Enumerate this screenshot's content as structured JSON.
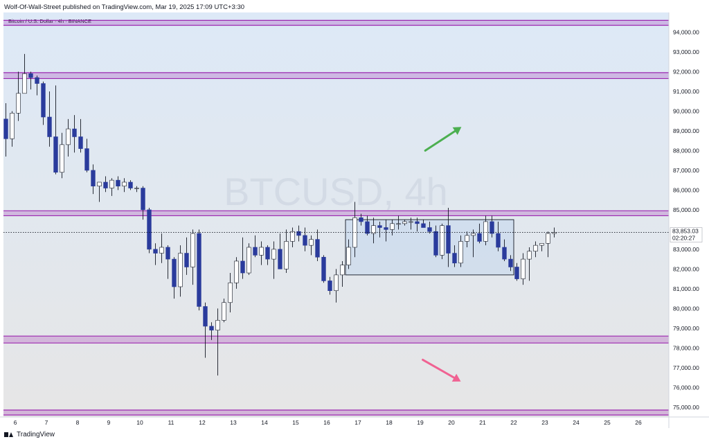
{
  "header": {
    "published_text": "Wolf-Of-Wall-Street published on TradingView.com, Mar 19, 2025 17:09 UTC+3:30"
  },
  "footer": {
    "logo_text": "TradingView"
  },
  "chart_data": {
    "type": "candlestick",
    "symbol_label": "Bitcoin / U.S. Dollar · 4h · BINANCE",
    "watermark": "BTCUSD, 4h",
    "ylim": [
      74500,
      95000
    ],
    "y_ticks": [
      "94,000.00",
      "93,000.00",
      "92,000.00",
      "91,000.00",
      "90,000.00",
      "89,000.00",
      "88,000.00",
      "87,000.00",
      "86,000.00",
      "85,000.00",
      "84,000.00",
      "83,000.00",
      "82,000.00",
      "81,000.00",
      "80,000.00",
      "79,000.00",
      "78,000.00",
      "77,000.00",
      "76,000.00",
      "75,000.00"
    ],
    "x_ticks": [
      {
        "label": "6",
        "index": 1.5
      },
      {
        "label": "7",
        "index": 6.5
      },
      {
        "label": "8",
        "index": 11.5
      },
      {
        "label": "9",
        "index": 16.5
      },
      {
        "label": "10",
        "index": 21.5
      },
      {
        "label": "11",
        "index": 26.5
      },
      {
        "label": "12",
        "index": 31.5
      },
      {
        "label": "13",
        "index": 36.5
      },
      {
        "label": "14",
        "index": 41.5
      },
      {
        "label": "15",
        "index": 46.5
      },
      {
        "label": "16",
        "index": 51.5
      },
      {
        "label": "17",
        "index": 56.5
      },
      {
        "label": "18",
        "index": 61.5
      },
      {
        "label": "19",
        "index": 66.5
      },
      {
        "label": "20",
        "index": 71.5
      },
      {
        "label": "21",
        "index": 76.5
      },
      {
        "label": "22",
        "index": 81.5
      },
      {
        "label": "23",
        "index": 86.5
      },
      {
        "label": "24",
        "index": 91.5
      },
      {
        "label": "25",
        "index": 96.5
      },
      {
        "label": "26",
        "index": 101.5
      }
    ],
    "last_price": "83,853.03",
    "countdown": "02:20:27",
    "candles": [
      [
        89600,
        90400,
        87700,
        88600
      ],
      [
        88600,
        90000,
        88200,
        89900
      ],
      [
        89900,
        92000,
        89500,
        90900
      ],
      [
        90900,
        92900,
        91000,
        91900
      ],
      [
        91900,
        92000,
        91100,
        91700
      ],
      [
        91700,
        91800,
        90800,
        91400
      ],
      [
        91400,
        91500,
        89300,
        89700
      ],
      [
        89700,
        91000,
        88200,
        88700
      ],
      [
        88700,
        91300,
        86800,
        86900
      ],
      [
        86900,
        88900,
        86600,
        88300
      ],
      [
        88300,
        89600,
        87700,
        89100
      ],
      [
        89100,
        89800,
        87900,
        88700
      ],
      [
        88700,
        89600,
        87900,
        88100
      ],
      [
        88100,
        88600,
        86900,
        87000
      ],
      [
        87000,
        87300,
        85800,
        86200
      ],
      [
        86200,
        86400,
        85400,
        86400
      ],
      [
        86400,
        86700,
        85900,
        86100
      ],
      [
        86100,
        86600,
        85700,
        86500
      ],
      [
        86500,
        86700,
        86000,
        86200
      ],
      [
        86200,
        86600,
        85900,
        86400
      ],
      [
        86400,
        86500,
        86000,
        86100
      ],
      [
        86100,
        86200,
        85900,
        86100
      ],
      [
        86100,
        86200,
        84500,
        85000
      ],
      [
        85000,
        85100,
        82800,
        83000
      ],
      [
        83000,
        83300,
        82200,
        82800
      ],
      [
        82800,
        83800,
        82300,
        83100
      ],
      [
        83100,
        83200,
        81500,
        82500
      ],
      [
        82500,
        82600,
        80500,
        81100
      ],
      [
        81100,
        83200,
        80600,
        82800
      ],
      [
        82800,
        83600,
        81700,
        82100
      ],
      [
        82100,
        84000,
        81200,
        83800
      ],
      [
        83800,
        84000,
        79900,
        80100
      ],
      [
        80100,
        80300,
        77500,
        79100
      ],
      [
        79100,
        79300,
        78400,
        78900
      ],
      [
        78900,
        80000,
        76600,
        79400
      ],
      [
        79400,
        80500,
        79300,
        80300
      ],
      [
        80300,
        81800,
        79800,
        81300
      ],
      [
        81300,
        82600,
        81000,
        82400
      ],
      [
        82400,
        83600,
        81500,
        81800
      ],
      [
        81800,
        83300,
        81700,
        83100
      ],
      [
        83100,
        83700,
        82600,
        82700
      ],
      [
        82700,
        83400,
        82200,
        83100
      ],
      [
        83100,
        83200,
        82200,
        82500
      ],
      [
        82500,
        83400,
        81500,
        83000
      ],
      [
        83000,
        83800,
        82000,
        82000
      ],
      [
        82000,
        84000,
        81800,
        83400
      ],
      [
        83400,
        84100,
        83100,
        83900
      ],
      [
        83900,
        84200,
        83400,
        83700
      ],
      [
        83700,
        84100,
        82900,
        83200
      ],
      [
        83200,
        83700,
        82700,
        83500
      ],
      [
        83500,
        84000,
        82400,
        82600
      ],
      [
        82600,
        82700,
        81300,
        81400
      ],
      [
        81400,
        81600,
        80700,
        80900
      ],
      [
        80900,
        82000,
        80300,
        81700
      ],
      [
        81700,
        82400,
        81100,
        82200
      ],
      [
        82200,
        83500,
        82000,
        83100
      ],
      [
        83100,
        85400,
        82600,
        84600
      ],
      [
        84600,
        84800,
        84200,
        84400
      ],
      [
        84400,
        84700,
        83700,
        83800
      ],
      [
        83800,
        84600,
        83300,
        84200
      ],
      [
        84200,
        84400,
        83600,
        84100
      ],
      [
        84100,
        84500,
        83400,
        84000
      ],
      [
        84000,
        84500,
        83700,
        84300
      ],
      [
        84300,
        84700,
        84000,
        84300
      ],
      [
        84300,
        84500,
        84200,
        84400
      ],
      [
        84400,
        84600,
        84000,
        84400
      ],
      [
        84400,
        84600,
        83900,
        84300
      ],
      [
        84300,
        84500,
        84100,
        84100
      ],
      [
        84100,
        84400,
        83800,
        83900
      ],
      [
        83900,
        84200,
        82600,
        82700
      ],
      [
        82700,
        84300,
        82500,
        84200
      ],
      [
        84200,
        85100,
        82100,
        82800
      ],
      [
        82800,
        83200,
        82100,
        82300
      ],
      [
        82300,
        83700,
        82100,
        83400
      ],
      [
        83400,
        83900,
        83100,
        83700
      ],
      [
        83700,
        84000,
        82600,
        83800
      ],
      [
        83800,
        84300,
        83300,
        83400
      ],
      [
        83400,
        84700,
        83200,
        84400
      ],
      [
        84400,
        84700,
        83600,
        83800
      ],
      [
        83800,
        84400,
        82900,
        83100
      ],
      [
        83100,
        83500,
        82400,
        82500
      ],
      [
        82500,
        82700,
        81900,
        82100
      ],
      [
        82100,
        82300,
        81400,
        81500
      ],
      [
        81500,
        82800,
        81200,
        82500
      ],
      [
        82500,
        83100,
        81400,
        82900
      ],
      [
        82900,
        83400,
        82600,
        83200
      ],
      [
        83200,
        83300,
        82900,
        83300
      ],
      [
        83300,
        83900,
        82600,
        83800
      ],
      [
        83800,
        84100,
        83600,
        83853
      ]
    ],
    "horizontal_zones": [
      {
        "low": 94350,
        "high": 94600,
        "color": "#9c27b0"
      },
      {
        "low": 91650,
        "high": 91950,
        "color": "#9c27b0"
      },
      {
        "low": 84700,
        "high": 84950,
        "color": "#9c27b0"
      },
      {
        "low": 78250,
        "high": 78600,
        "color": "#9c27b0"
      },
      {
        "low": 74600,
        "high": 74850,
        "color": "#9c27b0"
      }
    ],
    "range_box": {
      "x_start": 54.5,
      "x_end": 81.5,
      "high": 84500,
      "low": 81700
    },
    "arrows": [
      {
        "x_from": 67.3,
        "x_to": 73.1,
        "y_from": 88000,
        "y_to": 89200,
        "color": "#4caf50"
      },
      {
        "x_from": 66.9,
        "x_to": 73.0,
        "y_from": 77400,
        "y_to": 76300,
        "color": "#f06292"
      }
    ],
    "colors": {
      "up": "#ffffff",
      "down": "#2a3b9c",
      "wick": "#131722",
      "background_top": "#dde9f7",
      "background_bottom": "#e6e6e6",
      "box": "#131722"
    }
  }
}
